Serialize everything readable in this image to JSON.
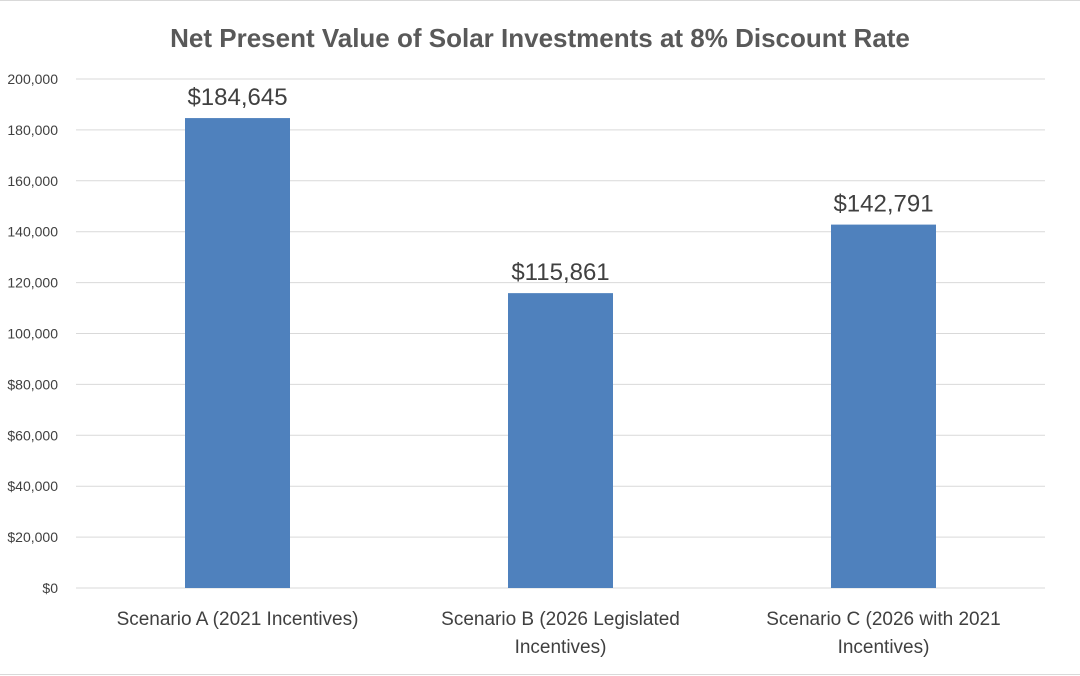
{
  "chart_data": {
    "type": "bar",
    "title": "Net Present Value of Solar Investments at 8% Discount Rate",
    "xlabel": "",
    "ylabel": "",
    "categories": [
      [
        "Scenario A (2021 Incentives)"
      ],
      [
        "Scenario B (2026 Legislated",
        "Incentives)"
      ],
      [
        "Scenario C (2026 with 2021",
        "Incentives)"
      ]
    ],
    "values": [
      184645,
      115861,
      142791
    ],
    "data_labels": [
      "$184,645",
      "$115,861",
      "$142,791"
    ],
    "ylim": [
      0,
      200000
    ],
    "yticks": [
      0,
      20000,
      40000,
      60000,
      80000,
      100000,
      120000,
      140000,
      160000,
      180000,
      200000
    ],
    "ytick_labels": [
      "$0",
      "$20,000",
      "$40,000",
      "$60,000",
      "$80,000",
      "100,000",
      "120,000",
      "140,000",
      "160,000",
      "180,000",
      "200,000"
    ],
    "grid": true,
    "legend": "none",
    "bar_color": "#4f81bd",
    "grid_color": "#d9d9d9"
  }
}
